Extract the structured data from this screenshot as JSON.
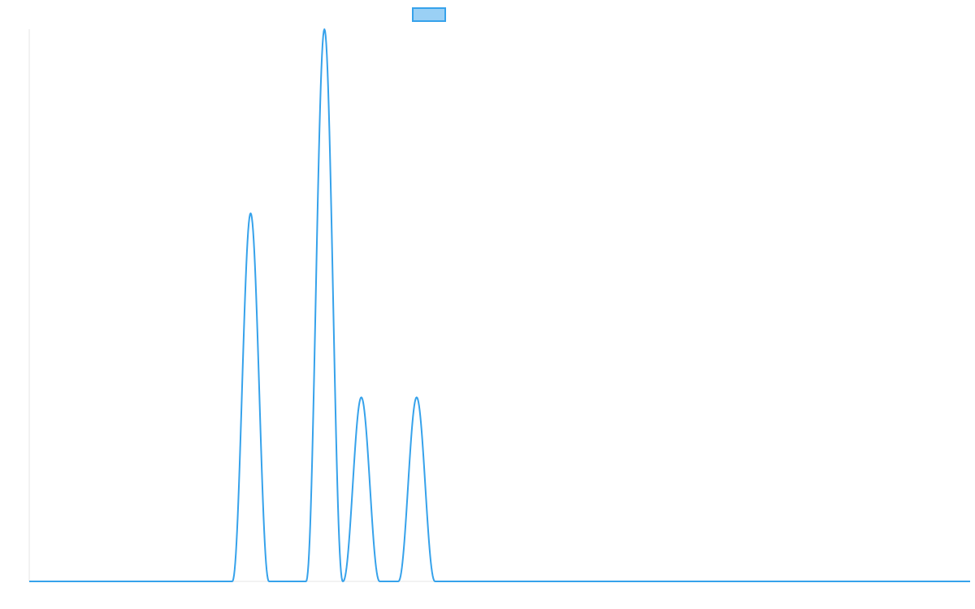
{
  "chart_data": {
    "type": "line",
    "title": "",
    "xlabel": "",
    "ylabel": "",
    "grid": false,
    "legend": {
      "position": "top-center",
      "entries": [
        ""
      ]
    },
    "colors": {
      "line": "#36a2eb",
      "legend_fill": "#9ad0f5",
      "axis": "#e5e5e5"
    },
    "xlim": [
      0,
      51
    ],
    "ylim": [
      0,
      3
    ],
    "series": [
      {
        "name": "",
        "peaks": [
          {
            "start": 11,
            "end": 13,
            "height": 2
          },
          {
            "start": 15,
            "end": 17,
            "height": 3
          },
          {
            "start": 17,
            "end": 19,
            "height": 1
          },
          {
            "start": 20,
            "end": 22,
            "height": 1
          }
        ]
      }
    ]
  }
}
